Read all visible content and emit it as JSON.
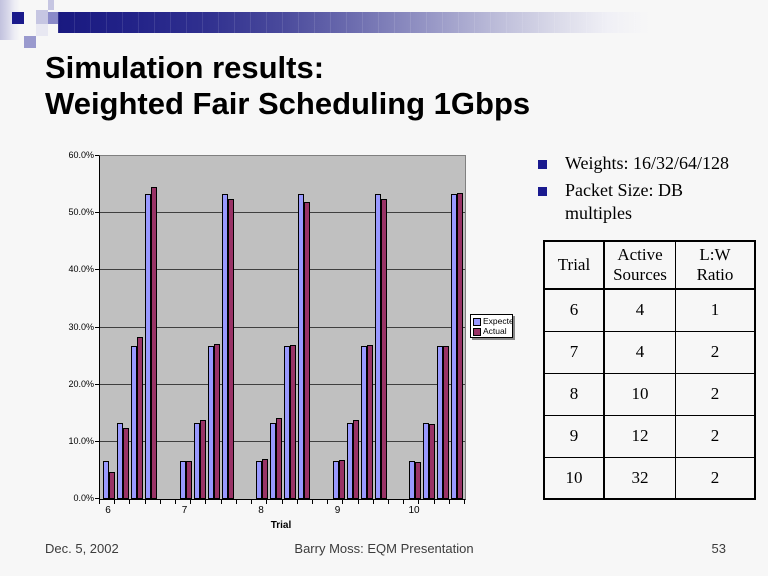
{
  "slide": {
    "title_line1": "Simulation results:",
    "title_line2": "Weighted Fair Scheduling 1Gbps",
    "bullets": [
      "Weights: 16/32/64/128",
      "Packet Size: DB\nmultiples"
    ],
    "footer": {
      "date": "Dec. 5, 2002",
      "center": "Barry Moss: EQM Presentation",
      "page": "53"
    }
  },
  "table": {
    "headers": [
      "Trial",
      "Active\nSources",
      "L:W\nRatio"
    ],
    "rows": [
      [
        "6",
        "4",
        "1"
      ],
      [
        "7",
        "4",
        "2"
      ],
      [
        "8",
        "10",
        "2"
      ],
      [
        "9",
        "12",
        "2"
      ],
      [
        "10",
        "32",
        "2"
      ]
    ]
  },
  "chart_data": {
    "type": "bar",
    "title": "",
    "xlabel": "Trial",
    "ylabel": "",
    "ylim": [
      0,
      60
    ],
    "ytick_labels": [
      "0.0%",
      "10.0%",
      "20.0%",
      "30.0%",
      "40.0%",
      "50.0%",
      "60.0%"
    ],
    "categories": [
      "6",
      "7",
      "8",
      "9",
      "10"
    ],
    "bars_per_category": 4,
    "grid": true,
    "plot_background": "#c0c0c0",
    "legend_position": "right",
    "series": [
      {
        "name": "Expected",
        "color": "#9999ff",
        "values": [
          [
            6.7,
            13.3,
            26.7,
            53.3
          ],
          [
            6.7,
            13.3,
            26.7,
            53.3
          ],
          [
            6.7,
            13.3,
            26.7,
            53.3
          ],
          [
            6.7,
            13.3,
            26.7,
            53.3
          ],
          [
            6.7,
            13.3,
            26.7,
            53.3
          ]
        ]
      },
      {
        "name": "Actual",
        "color": "#993366",
        "values": [
          [
            4.7,
            12.5,
            28.3,
            54.5
          ],
          [
            6.7,
            13.8,
            27.1,
            52.5
          ],
          [
            7.0,
            14.1,
            27.0,
            52.0
          ],
          [
            6.9,
            13.8,
            27.0,
            52.5
          ],
          [
            6.4,
            13.2,
            26.8,
            53.6
          ]
        ]
      }
    ]
  },
  "colors": {
    "accent_navy": "#1a1a8c",
    "bar_expected": "#9999ff",
    "bar_actual": "#993366"
  }
}
